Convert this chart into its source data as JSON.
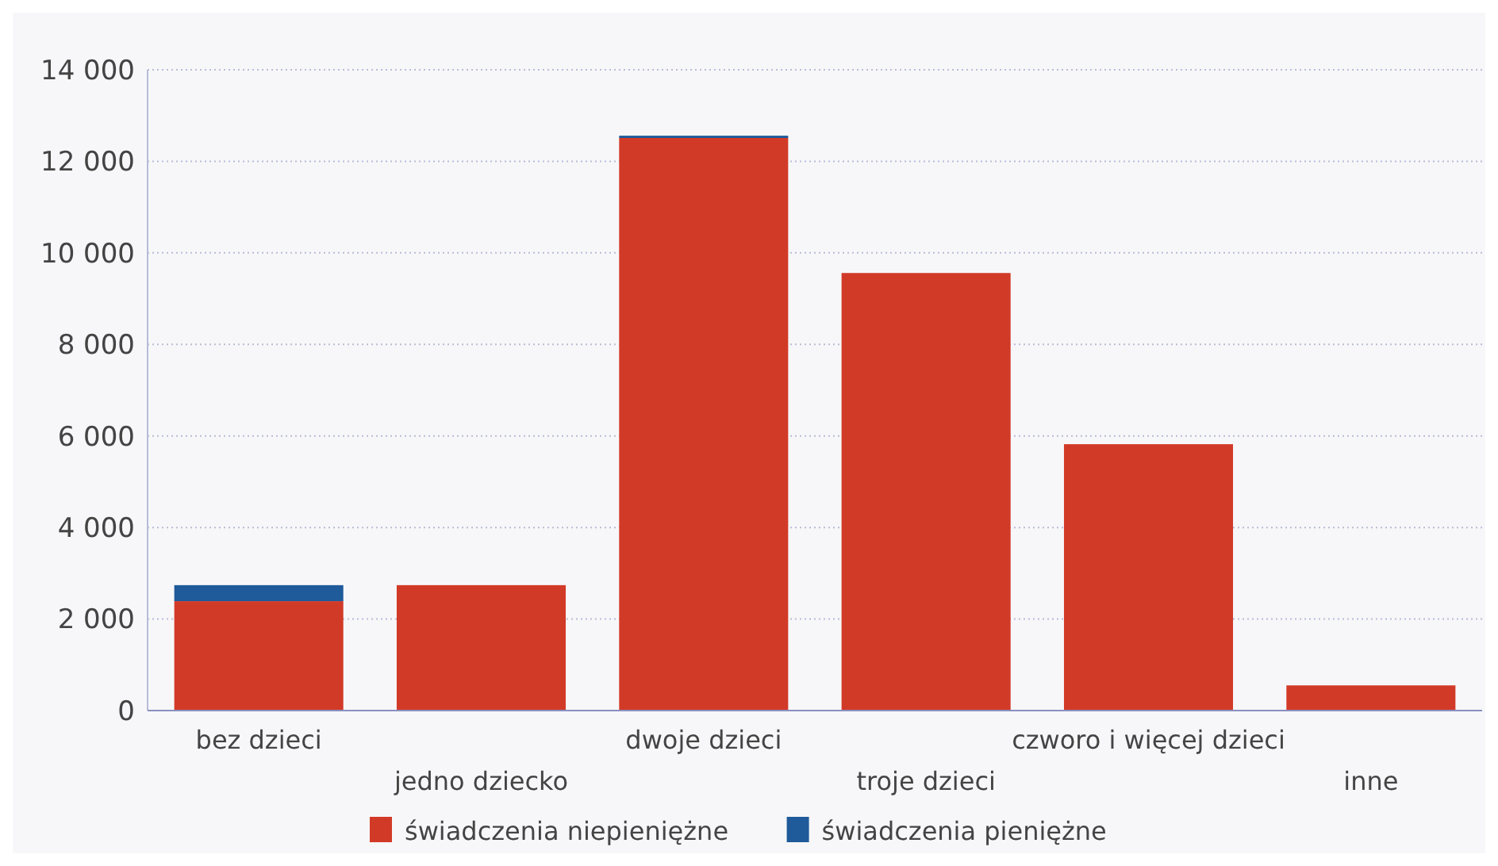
{
  "chart_data": {
    "type": "bar",
    "stacked": true,
    "categories": [
      "bez dzieci",
      "jedno dziecko",
      "dwoje dzieci",
      "troje dzieci",
      "czworo i więcej dzieci",
      "inne"
    ],
    "series": [
      {
        "name": "świadczenia niepieniężne",
        "color": "#d23a28",
        "values": [
          2390,
          2740,
          12510,
          9560,
          5820,
          550
        ]
      },
      {
        "name": "świadczenia pieniężne",
        "color": "#1f5a9a",
        "values": [
          350,
          0,
          50,
          0,
          0,
          0
        ]
      }
    ],
    "ylim": [
      0,
      14000
    ],
    "yticks": [
      {
        "value": 0,
        "label": "0"
      },
      {
        "value": 2000,
        "label": "2 000"
      },
      {
        "value": 4000,
        "label": "4 000"
      },
      {
        "value": 6000,
        "label": "6 000"
      },
      {
        "value": 8000,
        "label": "8 000"
      },
      {
        "value": 10000,
        "label": "10 000"
      },
      {
        "value": 12000,
        "label": "12 000"
      },
      {
        "value": 14000,
        "label": "14 000"
      }
    ],
    "grid": "y",
    "legend": "bottom"
  }
}
